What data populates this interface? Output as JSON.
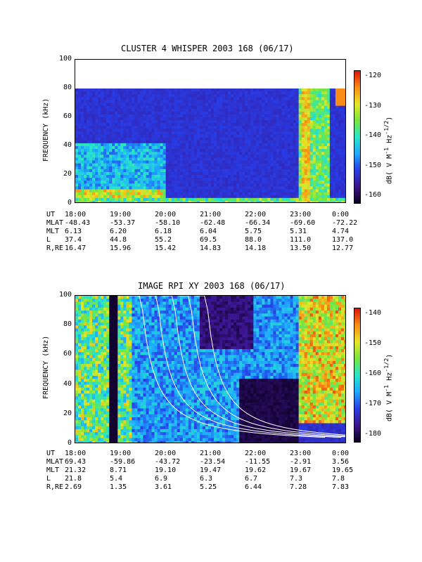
{
  "panels": [
    {
      "title": "CLUSTER 4 WHISPER 2003 168 (06/17)",
      "ylabel": "FREQUENCY (kHz)",
      "yticks": [
        "100",
        "80",
        "60",
        "40",
        "20",
        "0"
      ],
      "cbar_label": "dB( V M-1 Hz-1/2)",
      "cbar_ticks": [
        "-120",
        "-130",
        "-140",
        "-150",
        "-160"
      ],
      "ephem": {
        "labels": [
          "UT",
          "MLAT",
          "MLT",
          "L",
          "R,RE"
        ],
        "cols": [
          [
            "18:00",
            "19:00",
            "20:00",
            "21:00",
            "22:00",
            "23:00",
            "0:00"
          ],
          [
            "-48.43",
            "-53.37",
            "-58.10",
            "-62.48",
            "-66.34",
            "-69.60",
            "-72.22"
          ],
          [
            "6.13",
            "6.20",
            "6.18",
            "6.04",
            "5.75",
            "5.31",
            "4.74"
          ],
          [
            "37.4",
            "44.8",
            "55.2",
            "69.5",
            "88.0",
            "111.0",
            "137.0"
          ],
          [
            "16.47",
            "15.96",
            "15.42",
            "14.83",
            "14.18",
            "13.50",
            "12.77"
          ]
        ]
      }
    },
    {
      "title": "IMAGE RPI XY 2003 168 (06/17)",
      "ylabel": "FREQUENCY (kHz)",
      "yticks": [
        "100",
        "80",
        "60",
        "40",
        "20",
        "0"
      ],
      "cbar_label": "dB( V M-1 Hz-1/2)",
      "cbar_ticks": [
        "-140",
        "-150",
        "-160",
        "-170",
        "-180"
      ],
      "ephem": {
        "labels": [
          "UT",
          "MLAT",
          "MLT",
          "L",
          "R,RE"
        ],
        "cols": [
          [
            "18:00",
            "19:00",
            "20:00",
            "21:00",
            "22:00",
            "23:00",
            "0:00"
          ],
          [
            "69.43",
            "-59.86",
            "-43.72",
            "-23.54",
            "-11.55",
            "-2.91",
            "3.56"
          ],
          [
            "21.32",
            "8.71",
            "19.10",
            "19.47",
            "19.62",
            "19.67",
            "19.65"
          ],
          [
            "21.8",
            "5.4",
            "6.9",
            "6.3",
            "6.7",
            "7.3",
            "7.8"
          ],
          [
            "2.69",
            "1.35",
            "3.61",
            "5.25",
            "6.44",
            "7.28",
            "7.83"
          ]
        ]
      }
    }
  ],
  "chart_data": [
    {
      "type": "heatmap",
      "title": "CLUSTER 4 WHISPER 2003 168 (06/17)",
      "ylabel": "FREQUENCY (kHz)",
      "xlabel": "UT",
      "x": [
        "18:00",
        "19:00",
        "20:00",
        "21:00",
        "22:00",
        "23:00",
        "0:00"
      ],
      "ylim": [
        0,
        100
      ],
      "data_upper_frequency_kHz": 80,
      "colorbar_range_dB": [
        -165,
        -118
      ],
      "colorbar_ticks": [
        -120,
        -130,
        -140,
        -150,
        -160
      ]
    },
    {
      "type": "heatmap",
      "title": "IMAGE RPI XY 2003 168 (06/17)",
      "ylabel": "FREQUENCY (kHz)",
      "xlabel": "UT",
      "x": [
        "18:00",
        "19:00",
        "20:00",
        "21:00",
        "22:00",
        "23:00",
        "0:00"
      ],
      "ylim": [
        0,
        100
      ],
      "colorbar_range_dB": [
        -185,
        -137
      ],
      "colorbar_ticks": [
        -140,
        -150,
        -160,
        -170,
        -180
      ]
    }
  ]
}
